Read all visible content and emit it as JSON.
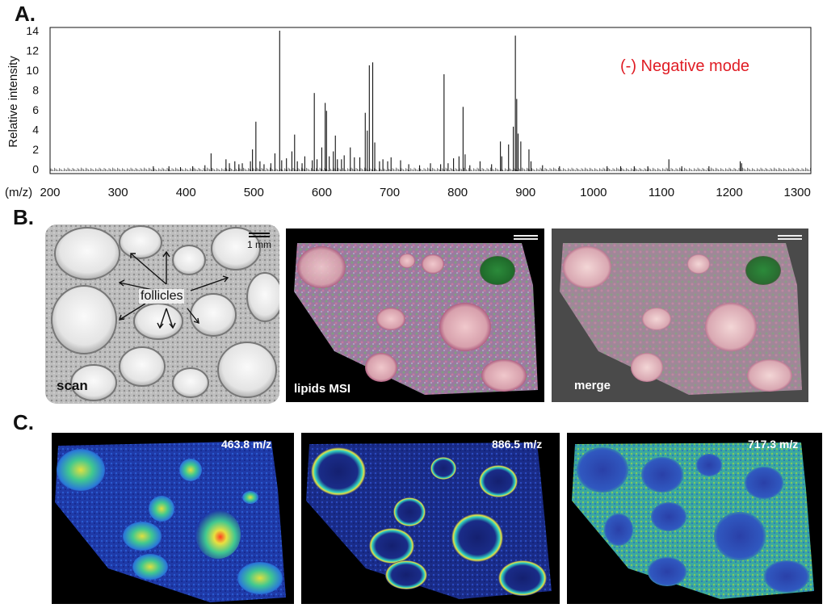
{
  "panels": {
    "a": "A.",
    "b": "B.",
    "c": "C."
  },
  "chart_data": {
    "type": "line",
    "subtype": "mass-spectrum",
    "annotation": "(-)  Negative mode",
    "annotation_color": "#e01c24",
    "ylabel": "Relative intensity",
    "xlabel_prefix": "(m/z)",
    "xlim": [
      200,
      1320
    ],
    "ylim": [
      -1,
      14
    ],
    "xticks": [
      200,
      300,
      400,
      500,
      600,
      700,
      800,
      900,
      1000,
      1100,
      1200,
      1300
    ],
    "yticks": [
      0,
      2,
      4,
      6,
      8,
      10,
      12,
      14
    ],
    "peaks": [
      [
        352,
        0.3
      ],
      [
        375,
        0.3
      ],
      [
        392,
        0.2
      ],
      [
        410,
        0.3
      ],
      [
        428,
        0.4
      ],
      [
        437,
        1.6
      ],
      [
        459,
        1.0
      ],
      [
        464,
        0.6
      ],
      [
        472,
        0.8
      ],
      [
        478,
        0.5
      ],
      [
        483,
        0.6
      ],
      [
        495,
        0.8
      ],
      [
        498,
        2.0
      ],
      [
        503,
        4.8
      ],
      [
        509,
        0.8
      ],
      [
        515,
        0.5
      ],
      [
        525,
        0.6
      ],
      [
        531,
        1.6
      ],
      [
        538,
        14.0
      ],
      [
        541,
        0.9
      ],
      [
        548,
        1.1
      ],
      [
        556,
        1.8
      ],
      [
        560,
        3.5
      ],
      [
        564,
        0.8
      ],
      [
        571,
        0.6
      ],
      [
        575,
        1.3
      ],
      [
        586,
        0.9
      ],
      [
        589,
        7.7
      ],
      [
        593,
        1.0
      ],
      [
        600,
        2.2
      ],
      [
        605,
        6.7
      ],
      [
        607,
        5.9
      ],
      [
        611,
        1.3
      ],
      [
        617,
        1.8
      ],
      [
        620,
        3.4
      ],
      [
        623,
        1.0
      ],
      [
        629,
        1.0
      ],
      [
        633,
        1.4
      ],
      [
        642,
        2.2
      ],
      [
        648,
        1.2
      ],
      [
        656,
        1.2
      ],
      [
        664,
        5.7
      ],
      [
        667,
        3.9
      ],
      [
        670,
        10.5
      ],
      [
        675,
        10.8
      ],
      [
        678,
        2.7
      ],
      [
        685,
        0.8
      ],
      [
        690,
        1.0
      ],
      [
        697,
        0.8
      ],
      [
        702,
        1.2
      ],
      [
        716,
        0.9
      ],
      [
        728,
        0.5
      ],
      [
        744,
        0.4
      ],
      [
        760,
        0.6
      ],
      [
        775,
        0.5
      ],
      [
        780,
        9.6
      ],
      [
        786,
        0.6
      ],
      [
        794,
        1.1
      ],
      [
        802,
        1.3
      ],
      [
        808,
        6.3
      ],
      [
        811,
        1.5
      ],
      [
        818,
        0.4
      ],
      [
        833,
        0.8
      ],
      [
        850,
        0.5
      ],
      [
        863,
        2.8
      ],
      [
        865,
        1.3
      ],
      [
        875,
        2.5
      ],
      [
        882,
        4.3
      ],
      [
        885,
        13.5
      ],
      [
        887,
        7.1
      ],
      [
        889,
        3.6
      ],
      [
        893,
        2.8
      ],
      [
        905,
        2.0
      ],
      [
        908,
        0.8
      ],
      [
        925,
        0.4
      ],
      [
        950,
        0.3
      ],
      [
        1020,
        0.3
      ],
      [
        1040,
        0.3
      ],
      [
        1060,
        0.3
      ],
      [
        1080,
        0.3
      ],
      [
        1111,
        1.0
      ],
      [
        1130,
        0.3
      ],
      [
        1170,
        0.3
      ],
      [
        1216,
        0.8
      ],
      [
        1218,
        0.6
      ]
    ]
  },
  "panel_b": {
    "scan_label": "scan",
    "msi_label": "lipids MSI",
    "merge_label": "merge",
    "follicles_label": "follicles",
    "scale_bar_label": "1 mm"
  },
  "panel_c": {
    "labels": [
      "463.8 m/z",
      "886.5 m/z",
      "717.3 m/z"
    ]
  }
}
